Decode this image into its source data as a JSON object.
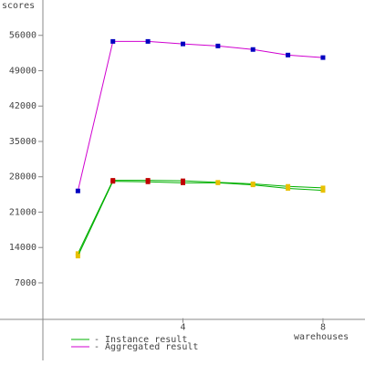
{
  "chart_data": {
    "type": "line",
    "y_label": "scores",
    "x_label": "warehouses",
    "x": [
      1,
      2,
      3,
      4,
      5,
      6,
      7,
      8
    ],
    "xlim": [
      0,
      9.2
    ],
    "xticks": [
      4,
      8
    ],
    "ylim": [
      -8000,
      63000
    ],
    "yticks": [
      7000,
      14000,
      21000,
      28000,
      35000,
      42000,
      49000,
      56000
    ],
    "series": [
      {
        "name": "- Instance result",
        "color": "#00b000",
        "instances": [
          [
            12800,
            27300,
            27300,
            27200,
            26900,
            26600,
            26100,
            25800
          ],
          [
            12300,
            27100,
            27000,
            26800,
            26800,
            26400,
            25700,
            25300
          ]
        ],
        "marker_colors": [
          "#e8c000",
          "#c00000",
          "#c00000",
          "#c00000",
          "#e8c000",
          "#e8c000",
          "#e8c000",
          "#e8c000"
        ]
      },
      {
        "name": "- Aggregated result",
        "color": "#d000d0",
        "values": [
          25200,
          54800,
          54800,
          54300,
          53900,
          53200,
          52100,
          51600
        ],
        "marker_color": "#0000c0"
      }
    ]
  }
}
